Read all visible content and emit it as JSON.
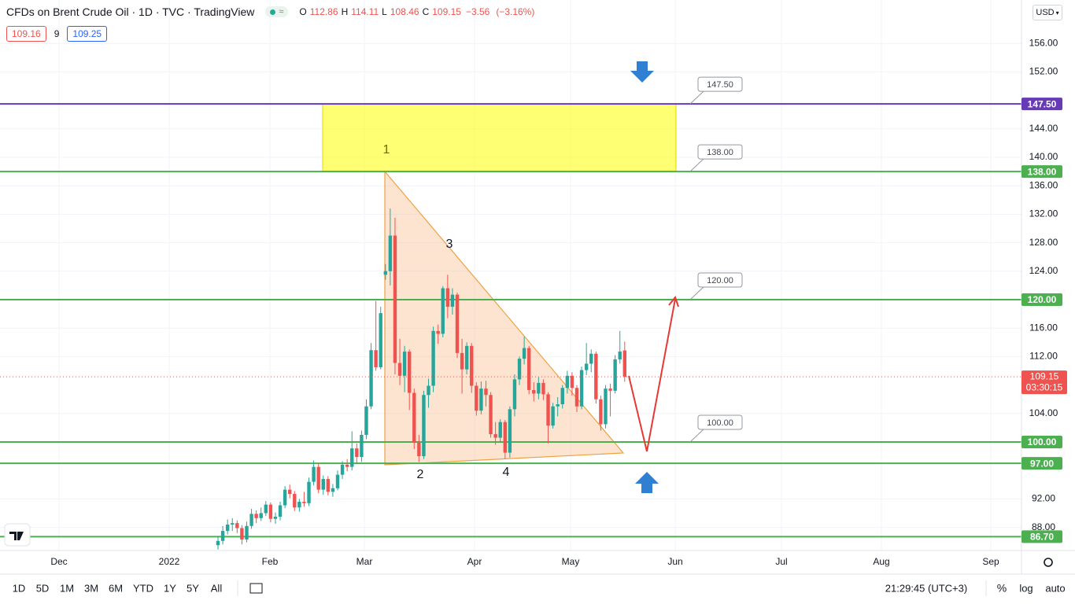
{
  "header": {
    "title": "CFDs on Brent Crude Oil · 1D · TVC · TradingView",
    "ohlc_labels": [
      "O",
      "H",
      "L",
      "C"
    ],
    "change": "−3.56",
    "change_pct": "(−3.16%)",
    "bid": "109.16",
    "spread": "9",
    "ask": "109.25",
    "currency": "USD"
  },
  "chart_data": {
    "type": "candlestick",
    "up_color": "#26a69a",
    "down_color": "#ef5350",
    "candles": [
      [
        85.5,
        86.8,
        84.9,
        86.1
      ],
      [
        86.1,
        88.2,
        85.6,
        87.5
      ],
      [
        87.5,
        89.1,
        87.0,
        88.4
      ],
      [
        88.4,
        89.3,
        87.5,
        88.6
      ],
      [
        88.6,
        89.0,
        87.2,
        87.9
      ],
      [
        87.9,
        88.3,
        85.6,
        86.3
      ],
      [
        86.3,
        88.8,
        85.9,
        88.2
      ],
      [
        88.2,
        90.6,
        87.8,
        89.9
      ],
      [
        89.9,
        90.4,
        88.6,
        89.3
      ],
      [
        89.3,
        90.8,
        88.9,
        90.0
      ],
      [
        90.0,
        91.7,
        89.6,
        91.2
      ],
      [
        91.2,
        91.5,
        88.7,
        89.2
      ],
      [
        89.2,
        90.1,
        88.5,
        89.5
      ],
      [
        89.5,
        91.6,
        89.0,
        91.1
      ],
      [
        91.1,
        93.8,
        90.7,
        93.3
      ],
      [
        93.3,
        94.0,
        92.1,
        92.7
      ],
      [
        92.7,
        93.1,
        90.3,
        90.8
      ],
      [
        90.8,
        92.0,
        90.2,
        91.6
      ],
      [
        91.6,
        93.0,
        90.9,
        91.4
      ],
      [
        91.4,
        95.0,
        91.0,
        94.4
      ],
      [
        94.4,
        97.4,
        93.9,
        96.5
      ],
      [
        96.5,
        96.9,
        92.8,
        93.3
      ],
      [
        93.3,
        95.3,
        92.6,
        94.8
      ],
      [
        94.8,
        95.2,
        92.5,
        93.0
      ],
      [
        93.0,
        94.1,
        92.3,
        93.5
      ],
      [
        93.5,
        96.0,
        93.2,
        95.4
      ],
      [
        95.4,
        97.3,
        94.8,
        96.8
      ],
      [
        96.8,
        97.6,
        95.9,
        96.5
      ],
      [
        96.5,
        101.5,
        96.0,
        99.1
      ],
      [
        99.1,
        99.8,
        96.9,
        97.9
      ],
      [
        97.9,
        101.6,
        97.2,
        101.0
      ],
      [
        101.0,
        106.0,
        100.4,
        105.0
      ],
      [
        105.0,
        113.9,
        104.6,
        112.9
      ],
      [
        112.9,
        119.8,
        110.0,
        110.5
      ],
      [
        110.5,
        119.0,
        110.2,
        118.1
      ],
      [
        123.5,
        125.0,
        122.8,
        124.0
      ],
      [
        124.0,
        132.8,
        122.0,
        129.0
      ],
      [
        129.0,
        131.5,
        109.5,
        111.1
      ],
      [
        111.1,
        114.5,
        108.0,
        109.3
      ],
      [
        109.3,
        113.5,
        107.0,
        112.7
      ],
      [
        112.7,
        113.0,
        104.5,
        106.9
      ],
      [
        106.9,
        107.5,
        99.0,
        99.9
      ],
      [
        99.9,
        101.0,
        97.2,
        98.0
      ],
      [
        98.0,
        107.2,
        97.6,
        106.6
      ],
      [
        106.6,
        108.9,
        104.8,
        107.9
      ],
      [
        107.9,
        116.2,
        107.0,
        115.6
      ],
      [
        115.6,
        116.5,
        113.8,
        115.2
      ],
      [
        115.2,
        121.9,
        114.7,
        121.6
      ],
      [
        121.6,
        123.5,
        117.4,
        119.0
      ],
      [
        119.0,
        121.6,
        117.9,
        120.7
      ],
      [
        120.7,
        121.0,
        111.8,
        112.5
      ],
      [
        112.5,
        114.5,
        106.8,
        110.2
      ],
      [
        110.2,
        114.0,
        109.5,
        113.5
      ],
      [
        113.5,
        113.9,
        106.9,
        107.9
      ],
      [
        107.9,
        108.4,
        103.7,
        104.4
      ],
      [
        104.4,
        108.5,
        103.9,
        107.5
      ],
      [
        107.5,
        108.6,
        105.0,
        106.6
      ],
      [
        106.6,
        107.0,
        100.6,
        101.1
      ],
      [
        101.1,
        102.8,
        99.6,
        100.6
      ],
      [
        100.6,
        103.2,
        99.9,
        102.8
      ],
      [
        102.8,
        103.1,
        97.6,
        98.5
      ],
      [
        98.5,
        105.0,
        97.8,
        104.6
      ],
      [
        104.6,
        109.5,
        103.6,
        108.8
      ],
      [
        108.8,
        112.0,
        108.0,
        111.7
      ],
      [
        111.7,
        114.8,
        110.9,
        113.2
      ],
      [
        113.2,
        113.5,
        106.7,
        107.3
      ],
      [
        107.3,
        108.4,
        105.7,
        106.8
      ],
      [
        106.8,
        109.1,
        106.0,
        108.3
      ],
      [
        108.3,
        108.8,
        105.9,
        106.7
      ],
      [
        106.7,
        107.0,
        99.8,
        102.3
      ],
      [
        102.3,
        105.5,
        101.9,
        105.0
      ],
      [
        105.0,
        106.3,
        103.6,
        105.3
      ],
      [
        105.3,
        108.0,
        104.7,
        107.6
      ],
      [
        107.6,
        110.0,
        106.8,
        109.3
      ],
      [
        109.3,
        109.8,
        106.5,
        107.6
      ],
      [
        107.6,
        108.0,
        104.2,
        105.0
      ],
      [
        105.0,
        110.6,
        104.6,
        110.1
      ],
      [
        110.1,
        113.9,
        109.4,
        111.0
      ],
      [
        111.0,
        113.0,
        109.8,
        112.4
      ],
      [
        112.4,
        112.7,
        105.4,
        106.0
      ],
      [
        106.0,
        106.5,
        101.6,
        102.5
      ],
      [
        102.5,
        108.0,
        101.9,
        107.5
      ],
      [
        107.5,
        108.2,
        103.6,
        107.2
      ],
      [
        107.2,
        112.2,
        106.8,
        111.6
      ],
      [
        111.6,
        115.6,
        111.0,
        112.71
      ],
      [
        112.86,
        114.11,
        108.46,
        109.15
      ]
    ],
    "ylim": [
      84.75,
      162.1
    ],
    "yticks": [
      {
        "value": 88,
        "label": "88.00"
      },
      {
        "value": 92,
        "label": "92.00"
      },
      {
        "value": 104,
        "label": "104.00"
      },
      {
        "value": 112,
        "label": "112.00"
      },
      {
        "value": 116,
        "label": "116.00"
      },
      {
        "value": 124,
        "label": "124.00"
      },
      {
        "value": 128,
        "label": "128.00"
      },
      {
        "value": 132,
        "label": "132.00"
      },
      {
        "value": 136,
        "label": "136.00"
      },
      {
        "value": 140,
        "label": "140.00"
      },
      {
        "value": 144,
        "label": "144.00"
      },
      {
        "value": 152,
        "label": "152.00"
      },
      {
        "value": 156,
        "label": "156.00"
      }
    ],
    "grid": true,
    "x_labels": [
      "Dec",
      "2022",
      "Feb",
      "Mar",
      "Apr",
      "May",
      "Jun",
      "Jul",
      "Aug",
      "Sep"
    ],
    "levels": [
      {
        "value": 147.5,
        "label": "147.50",
        "color": "#673ab7",
        "callout": true
      },
      {
        "value": 138,
        "label": "138.00",
        "color": "#4caf50",
        "callout": true
      },
      {
        "value": 120,
        "label": "120.00",
        "color": "#4caf50",
        "callout": true
      },
      {
        "value": 100,
        "label": "100.00",
        "color": "#4caf50",
        "callout": true
      },
      {
        "value": 97,
        "label": "97.00",
        "color": "#4caf50",
        "callout": false
      },
      {
        "value": 86.7,
        "label": "86.70",
        "color": "#4caf50",
        "callout": false
      }
    ],
    "waves": [
      "1",
      "2",
      "3",
      "4"
    ],
    "countdown": "03:30:15"
  },
  "toolbar": {
    "ranges": [
      "1D",
      "5D",
      "1M",
      "3M",
      "6M",
      "YTD",
      "1Y",
      "5Y",
      "All"
    ],
    "clock": "21:29:45 (UTC+3)",
    "percent": "%",
    "log": "log",
    "auto": "auto"
  }
}
